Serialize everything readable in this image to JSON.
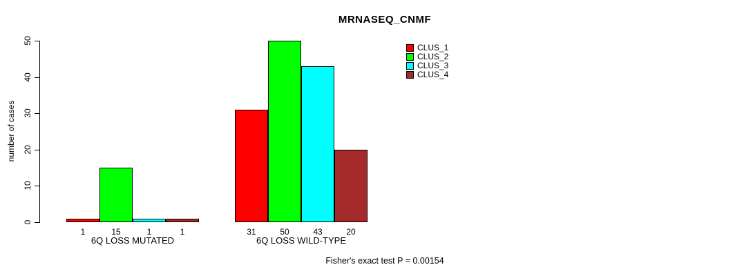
{
  "chart_data": {
    "type": "bar",
    "title": "MRNASEQ_CNMF",
    "ylabel": "number of cases",
    "xlabel": "",
    "categories": [
      "6Q LOSS MUTATED",
      "6Q LOSS WILD-TYPE"
    ],
    "series": [
      {
        "name": "CLUS_1",
        "color": "#FF0000",
        "values": [
          1,
          31
        ]
      },
      {
        "name": "CLUS_2",
        "color": "#00FF00",
        "values": [
          15,
          50
        ]
      },
      {
        "name": "CLUS_3",
        "color": "#00FFFF",
        "values": [
          1,
          43
        ]
      },
      {
        "name": "CLUS_4",
        "color": "#A52A2A",
        "values": [
          1,
          20
        ]
      }
    ],
    "ylim": [
      0,
      50
    ],
    "yticks": [
      0,
      10,
      20,
      30,
      40,
      50
    ],
    "grid": false,
    "legend_position": "top-right-inside",
    "bar_value_labels": true,
    "annotation": "Fisher's exact test P = 0.00154"
  }
}
